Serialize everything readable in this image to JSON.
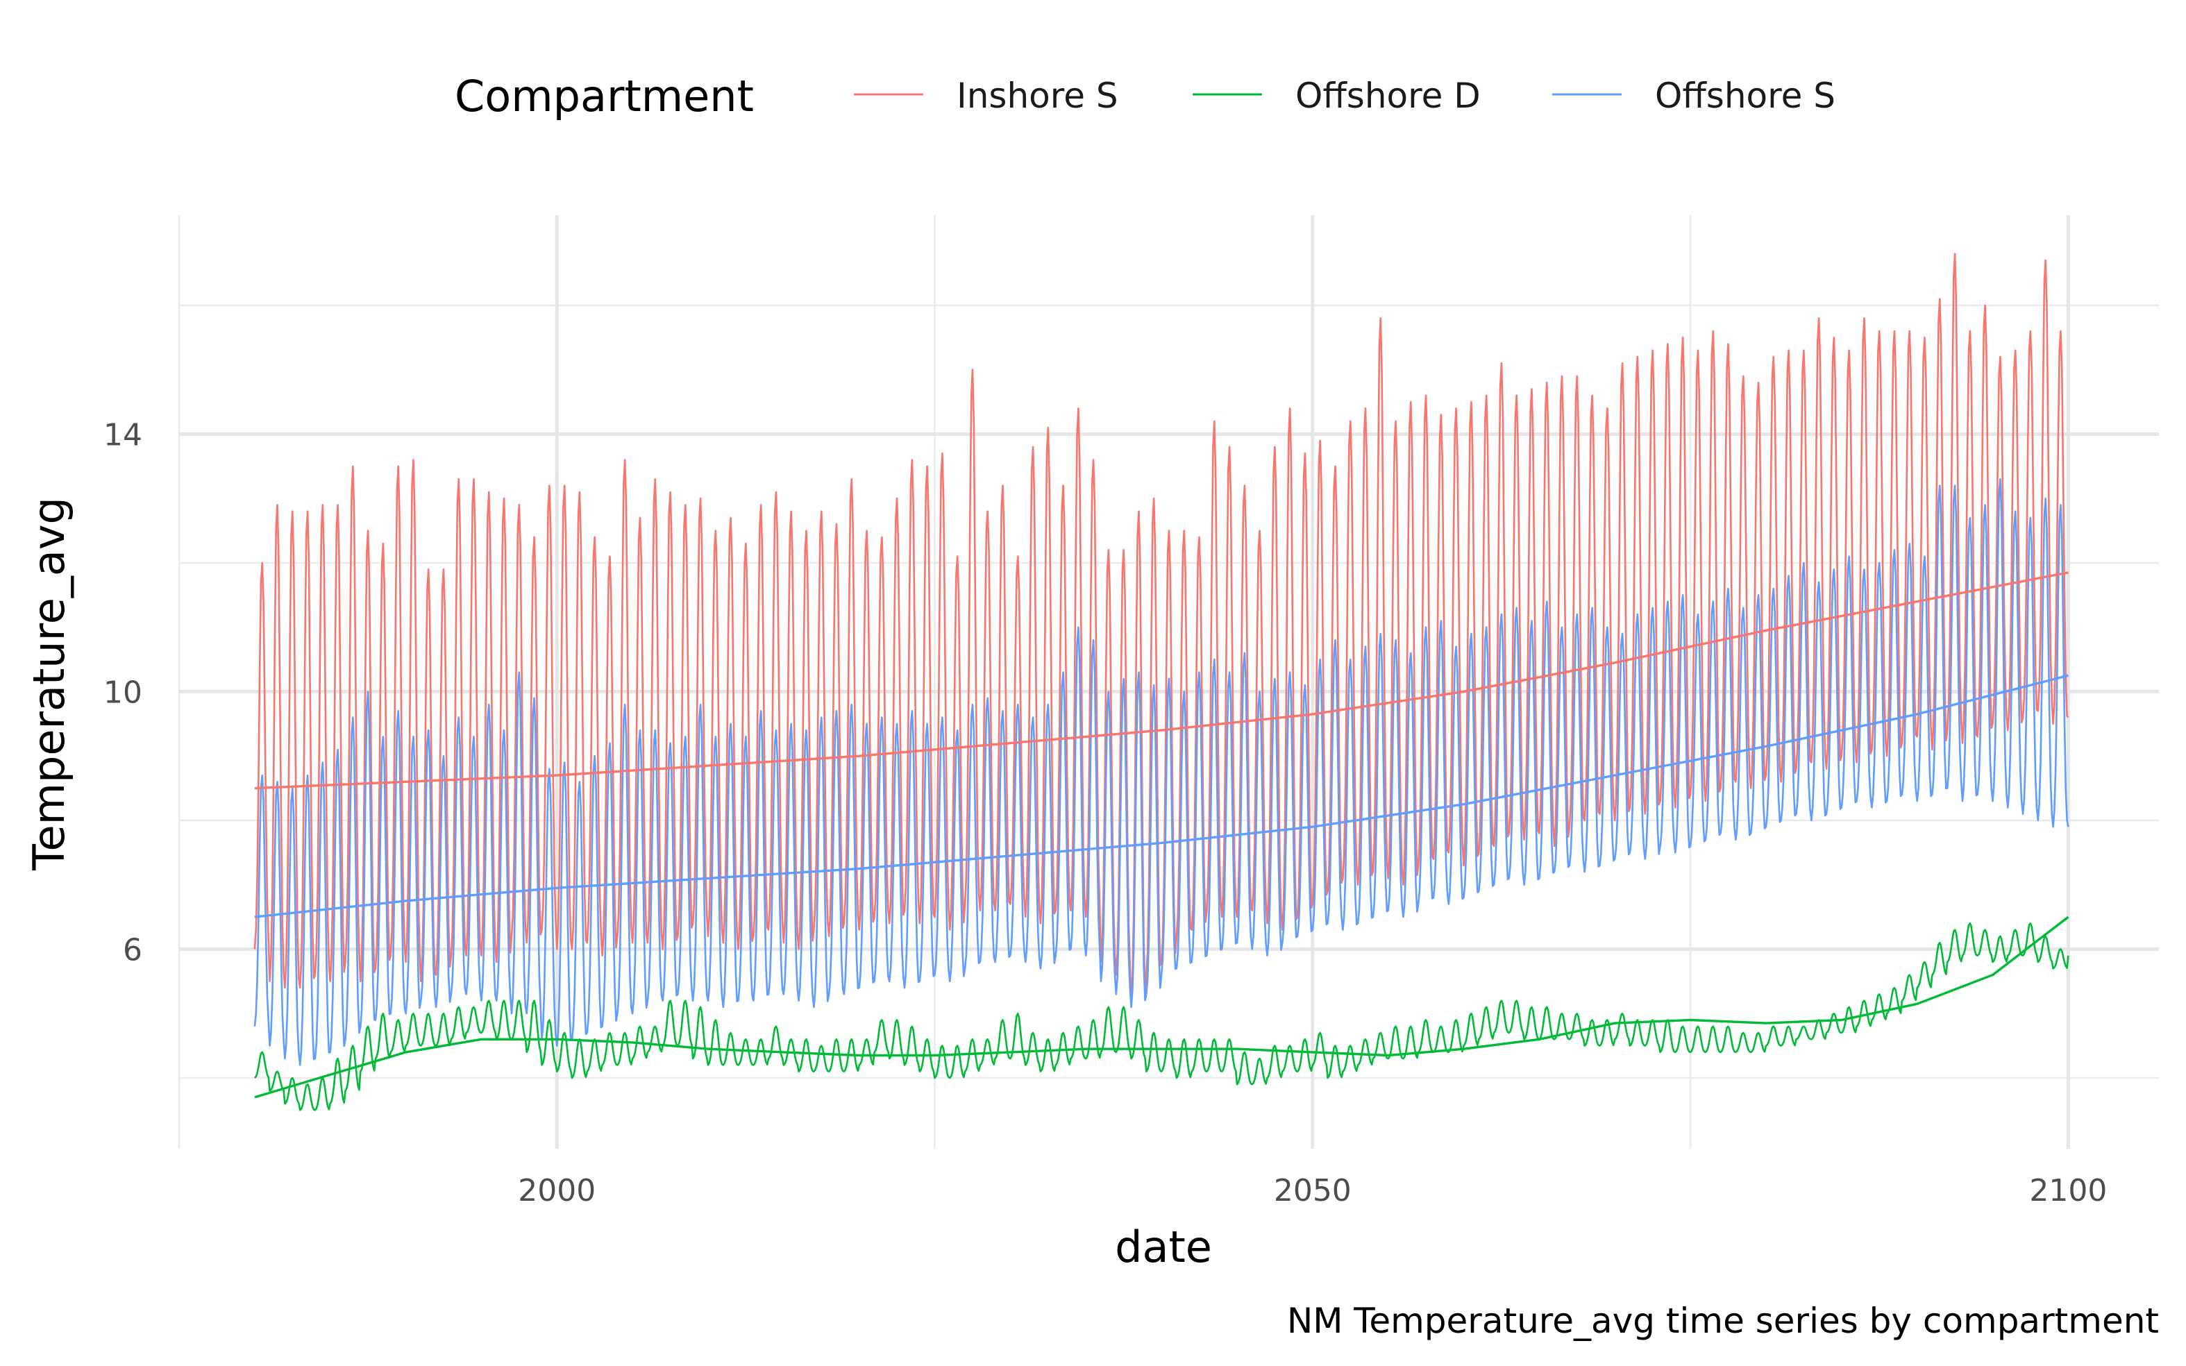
{
  "chart_data": {
    "type": "line",
    "title": "",
    "caption": "NM Temperature_avg time series by compartment",
    "xlabel": "date",
    "ylabel": "Temperature_avg",
    "x_ticks": [
      2000,
      2050,
      2100
    ],
    "y_ticks": [
      6,
      10,
      14
    ],
    "xlim": [
      1975,
      2106
    ],
    "ylim": [
      2.9,
      17.4
    ],
    "grid": true,
    "legend": {
      "title": "Compartment",
      "position": "top",
      "entries": [
        "Inshore S",
        "Offshore D",
        "Offshore S"
      ]
    },
    "series": [
      {
        "name": "Inshore S",
        "color": "#F8766D",
        "kind": "seasonal_monthly",
        "x_start": 1980,
        "x_end": 2100,
        "annual_max": [
          12.0,
          12.9,
          12.8,
          12.8,
          12.9,
          12.9,
          13.5,
          12.5,
          12.3,
          13.5,
          13.6,
          11.9,
          11.9,
          13.3,
          13.3,
          13.1,
          13.0,
          12.9,
          12.4,
          13.2,
          13.2,
          13.1,
          12.4,
          12.1,
          13.6,
          12.7,
          13.3,
          13.1,
          12.9,
          13.0,
          12.5,
          12.7,
          12.3,
          12.9,
          13.1,
          12.8,
          12.5,
          12.8,
          12.6,
          13.3,
          12.5,
          12.4,
          13.0,
          13.6,
          13.5,
          13.7,
          12.1,
          15.0,
          12.8,
          13.2,
          12.1,
          13.8,
          14.1,
          13.2,
          14.4,
          13.6,
          12.2,
          12.2,
          12.8,
          13.0,
          12.5,
          12.5,
          12.4,
          14.2,
          13.8,
          13.2,
          12.5,
          13.8,
          14.4,
          13.7,
          13.9,
          13.5,
          14.2,
          14.4,
          15.8,
          14.2,
          14.5,
          14.6,
          14.3,
          14.4,
          14.5,
          14.6,
          15.1,
          14.6,
          14.7,
          14.8,
          14.9,
          14.9,
          14.6,
          14.4,
          15.1,
          15.2,
          15.3,
          15.4,
          15.5,
          15.3,
          15.6,
          15.4,
          14.9,
          14.8,
          15.2,
          15.3,
          15.3,
          15.8,
          15.5,
          15.3,
          15.8,
          15.6,
          15.6,
          15.6,
          15.5,
          16.1,
          16.8,
          15.6,
          16.0,
          15.2,
          15.3,
          15.6,
          16.7,
          15.6,
          15.9
        ],
        "annual_min": [
          6.0,
          5.5,
          5.4,
          5.4,
          5.6,
          5.5,
          5.8,
          5.5,
          5.7,
          5.9,
          5.8,
          5.5,
          5.6,
          5.9,
          5.9,
          5.9,
          5.8,
          6.2,
          6.1,
          6.3,
          6.0,
          6.0,
          6.1,
          5.9,
          6.2,
          6.1,
          6.1,
          6.0,
          6.2,
          6.4,
          6.2,
          6.1,
          6.0,
          6.2,
          6.3,
          6.1,
          6.0,
          6.3,
          6.2,
          6.4,
          6.3,
          6.5,
          6.4,
          6.6,
          6.4,
          6.5,
          6.3,
          6.7,
          6.6,
          6.6,
          6.7,
          6.5,
          6.4,
          6.6,
          6.6,
          6.5,
          5.8,
          5.6,
          5.2,
          5.6,
          5.8,
          6.2,
          6.3,
          6.6,
          6.5,
          6.5,
          6.6,
          6.4,
          6.3,
          6.5,
          6.7,
          6.9,
          7.1,
          7.0,
          7.2,
          7.1,
          7.0,
          7.3,
          7.4,
          7.5,
          7.3,
          7.5,
          7.6,
          7.8,
          7.7,
          7.8,
          7.6,
          7.9,
          8.0,
          8.1,
          8.0,
          8.2,
          8.1,
          8.3,
          8.2,
          8.4,
          8.3,
          8.5,
          8.6,
          8.5,
          8.7,
          8.6,
          8.8,
          8.9,
          8.8,
          9.0,
          8.9,
          9.1,
          9.0,
          9.2,
          9.3,
          9.1,
          9.4,
          9.2,
          9.3,
          9.5,
          9.4,
          9.6,
          9.7,
          9.5,
          9.6
        ]
      },
      {
        "name": "Offshore D",
        "color": "#00BA38",
        "kind": "seasonal_monthly",
        "x_start": 1980,
        "x_end": 2100,
        "annual_max": [
          4.4,
          4.1,
          4.0,
          3.9,
          4.0,
          4.3,
          4.5,
          4.8,
          5.0,
          4.9,
          5.0,
          5.0,
          5.0,
          5.1,
          5.1,
          5.2,
          5.2,
          5.2,
          5.2,
          4.9,
          4.7,
          4.6,
          4.6,
          4.7,
          4.7,
          4.8,
          4.8,
          5.2,
          5.2,
          5.1,
          4.9,
          4.7,
          4.6,
          4.6,
          4.8,
          4.6,
          4.6,
          4.5,
          4.6,
          4.6,
          4.6,
          4.9,
          4.9,
          4.8,
          4.6,
          4.5,
          4.5,
          4.6,
          4.6,
          4.9,
          5.0,
          4.7,
          4.6,
          4.7,
          4.8,
          4.9,
          5.1,
          5.1,
          4.9,
          4.7,
          4.6,
          4.6,
          4.6,
          4.6,
          4.6,
          4.4,
          4.3,
          4.5,
          4.5,
          4.6,
          4.7,
          4.5,
          4.5,
          4.6,
          4.7,
          4.8,
          4.8,
          4.9,
          4.8,
          4.9,
          5.0,
          5.1,
          5.2,
          5.2,
          5.1,
          5.1,
          5.0,
          5.0,
          4.9,
          4.9,
          5.0,
          4.9,
          4.9,
          4.9,
          4.8,
          4.8,
          4.8,
          4.8,
          4.7,
          4.7,
          4.8,
          4.8,
          4.8,
          4.9,
          5.0,
          5.1,
          5.2,
          5.3,
          5.4,
          5.6,
          5.8,
          6.1,
          6.3,
          6.4,
          6.3,
          6.2,
          6.3,
          6.4,
          6.2,
          6.0,
          6.3
        ],
        "annual_min": [
          4.0,
          3.8,
          3.6,
          3.5,
          3.5,
          3.6,
          3.8,
          4.1,
          4.3,
          4.4,
          4.5,
          4.5,
          4.5,
          4.6,
          4.7,
          4.7,
          4.6,
          4.6,
          4.4,
          4.2,
          4.1,
          4.0,
          4.1,
          4.2,
          4.2,
          4.3,
          4.4,
          4.5,
          4.5,
          4.3,
          4.2,
          4.2,
          4.2,
          4.2,
          4.3,
          4.2,
          4.1,
          4.1,
          4.1,
          4.1,
          4.2,
          4.4,
          4.3,
          4.2,
          4.1,
          4.0,
          4.0,
          4.1,
          4.2,
          4.3,
          4.3,
          4.2,
          4.1,
          4.2,
          4.3,
          4.3,
          4.4,
          4.4,
          4.3,
          4.1,
          4.1,
          4.0,
          4.1,
          4.1,
          4.1,
          3.9,
          3.9,
          4.0,
          4.1,
          4.1,
          4.2,
          4.0,
          4.1,
          4.2,
          4.3,
          4.3,
          4.3,
          4.4,
          4.4,
          4.4,
          4.5,
          4.6,
          4.7,
          4.7,
          4.6,
          4.6,
          4.6,
          4.6,
          4.5,
          4.5,
          4.6,
          4.5,
          4.5,
          4.4,
          4.4,
          4.4,
          4.4,
          4.4,
          4.4,
          4.4,
          4.5,
          4.5,
          4.6,
          4.6,
          4.7,
          4.7,
          4.8,
          4.9,
          5.0,
          5.2,
          5.4,
          5.6,
          5.8,
          5.9,
          5.9,
          5.8,
          5.9,
          5.9,
          5.8,
          5.7,
          5.9
        ]
      },
      {
        "name": "Offshore S",
        "color": "#619CFF",
        "kind": "seasonal_monthly",
        "x_start": 1980,
        "x_end": 2100,
        "annual_max": [
          8.7,
          8.6,
          8.5,
          8.7,
          8.9,
          9.1,
          9.6,
          10.0,
          9.3,
          9.7,
          9.3,
          9.4,
          9.0,
          9.6,
          9.3,
          9.8,
          9.4,
          10.3,
          9.9,
          8.8,
          8.9,
          8.6,
          9.0,
          9.2,
          9.8,
          9.4,
          9.4,
          9.2,
          9.3,
          9.8,
          9.3,
          9.5,
          9.3,
          9.7,
          9.4,
          9.5,
          9.4,
          9.6,
          9.7,
          9.8,
          9.5,
          9.6,
          9.5,
          9.7,
          9.5,
          9.6,
          9.4,
          9.8,
          9.9,
          9.7,
          9.8,
          9.6,
          9.8,
          10.3,
          11.0,
          10.8,
          10.0,
          10.2,
          10.3,
          10.1,
          10.2,
          10.0,
          10.3,
          10.5,
          10.3,
          10.6,
          10.0,
          10.2,
          10.3,
          10.1,
          10.5,
          10.8,
          10.5,
          10.7,
          10.9,
          10.8,
          10.6,
          11.0,
          11.1,
          10.7,
          10.9,
          11.0,
          11.2,
          11.3,
          11.1,
          11.4,
          11.0,
          11.2,
          11.3,
          11.0,
          10.9,
          11.2,
          11.3,
          11.4,
          11.5,
          11.2,
          11.4,
          11.6,
          11.3,
          11.5,
          11.6,
          11.8,
          12.0,
          11.7,
          11.9,
          12.1,
          11.9,
          12.0,
          12.2,
          12.3,
          12.1,
          13.2,
          13.2,
          12.7,
          12.9,
          13.3,
          12.8,
          12.7,
          13.0,
          12.9,
          12.9
        ],
        "annual_min": [
          4.8,
          4.5,
          4.3,
          4.2,
          4.3,
          4.4,
          4.6,
          4.8,
          4.9,
          5.0,
          5.0,
          5.2,
          5.1,
          5.3,
          5.3,
          5.2,
          5.2,
          5.0,
          5.0,
          4.6,
          4.5,
          4.6,
          4.7,
          4.8,
          5.0,
          5.0,
          5.2,
          5.2,
          5.3,
          5.2,
          5.2,
          5.1,
          5.2,
          5.2,
          5.3,
          5.3,
          5.2,
          5.1,
          5.3,
          5.3,
          5.4,
          5.5,
          5.5,
          5.4,
          5.5,
          5.6,
          5.5,
          5.7,
          5.8,
          5.8,
          5.9,
          5.8,
          5.7,
          5.9,
          6.0,
          5.9,
          5.5,
          5.3,
          5.1,
          5.3,
          5.6,
          5.7,
          5.8,
          5.9,
          6.0,
          6.1,
          6.0,
          5.9,
          6.1,
          6.2,
          6.3,
          6.4,
          6.3,
          6.4,
          6.5,
          6.6,
          6.5,
          6.7,
          6.8,
          6.7,
          6.8,
          6.9,
          7.0,
          7.1,
          7.0,
          7.1,
          7.2,
          7.3,
          7.2,
          7.3,
          7.4,
          7.5,
          7.4,
          7.6,
          7.5,
          7.6,
          7.7,
          7.8,
          7.7,
          7.8,
          7.9,
          8.0,
          8.1,
          8.0,
          8.1,
          8.2,
          8.3,
          8.2,
          8.3,
          8.4,
          8.3,
          8.4,
          8.5,
          8.3,
          8.4,
          8.3,
          8.2,
          8.1,
          8.0,
          7.9,
          7.9
        ]
      }
    ],
    "trends": [
      {
        "name": "Inshore S",
        "color": "#F8766D",
        "x": [
          1980,
          1990,
          2000,
          2010,
          2020,
          2030,
          2040,
          2050,
          2060,
          2070,
          2080,
          2090,
          2100
        ],
        "y": [
          8.5,
          8.6,
          8.7,
          8.85,
          9.0,
          9.2,
          9.4,
          9.65,
          10.0,
          10.45,
          10.95,
          11.4,
          11.85
        ]
      },
      {
        "name": "Offshore D",
        "color": "#00BA38",
        "x": [
          1980,
          1985,
          1990,
          1995,
          2000,
          2005,
          2010,
          2015,
          2020,
          2025,
          2030,
          2035,
          2040,
          2045,
          2050,
          2055,
          2060,
          2065,
          2070,
          2075,
          2080,
          2085,
          2090,
          2095,
          2100
        ],
        "y": [
          3.7,
          4.05,
          4.4,
          4.6,
          4.6,
          4.55,
          4.45,
          4.4,
          4.35,
          4.35,
          4.4,
          4.45,
          4.45,
          4.45,
          4.4,
          4.35,
          4.45,
          4.6,
          4.85,
          4.9,
          4.85,
          4.9,
          5.15,
          5.6,
          6.5
        ]
      },
      {
        "name": "Offshore S",
        "color": "#619CFF",
        "x": [
          1980,
          1990,
          2000,
          2010,
          2020,
          2030,
          2040,
          2050,
          2060,
          2070,
          2080,
          2090,
          2100
        ],
        "y": [
          6.5,
          6.75,
          6.95,
          7.1,
          7.25,
          7.45,
          7.65,
          7.9,
          8.25,
          8.7,
          9.15,
          9.65,
          10.25
        ]
      }
    ]
  }
}
